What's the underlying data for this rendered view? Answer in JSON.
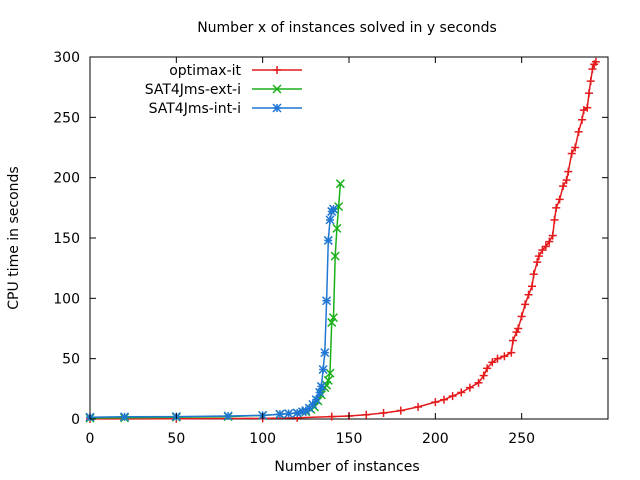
{
  "chart_data": {
    "type": "line",
    "title": "Number x of instances solved in y seconds",
    "xlabel": "Number of instances",
    "ylabel": "CPU time in seconds",
    "xlim": [
      0,
      300
    ],
    "ylim": [
      0,
      300
    ],
    "xticks": [
      0,
      50,
      100,
      150,
      200,
      250
    ],
    "yticks": [
      0,
      50,
      100,
      150,
      200,
      250,
      300
    ],
    "grid": false,
    "legend_position": "top-left",
    "series": [
      {
        "name": "optimax-it",
        "color": "#e41a1c",
        "marker": "plus",
        "points": [
          [
            0,
            0.1
          ],
          [
            50,
            0.2
          ],
          [
            100,
            0.5
          ],
          [
            120,
            1
          ],
          [
            140,
            2
          ],
          [
            150,
            2.5
          ],
          [
            160,
            3.5
          ],
          [
            170,
            5
          ],
          [
            180,
            7
          ],
          [
            190,
            10
          ],
          [
            200,
            14
          ],
          [
            205,
            16
          ],
          [
            210,
            19
          ],
          [
            215,
            22
          ],
          [
            220,
            26
          ],
          [
            225,
            30
          ],
          [
            228,
            36
          ],
          [
            230,
            42
          ],
          [
            233,
            47
          ],
          [
            236,
            50
          ],
          [
            240,
            52
          ],
          [
            244,
            55
          ],
          [
            245,
            65
          ],
          [
            247,
            72
          ],
          [
            248,
            75
          ],
          [
            250,
            85
          ],
          [
            252,
            95
          ],
          [
            254,
            103
          ],
          [
            256,
            110
          ],
          [
            257,
            120
          ],
          [
            259,
            130
          ],
          [
            260,
            135
          ],
          [
            262,
            140
          ],
          [
            264,
            143
          ],
          [
            266,
            147
          ],
          [
            268,
            152
          ],
          [
            269,
            165
          ],
          [
            270,
            175
          ],
          [
            272,
            182
          ],
          [
            274,
            193
          ],
          [
            276,
            198
          ],
          [
            277,
            205
          ],
          [
            279,
            220
          ],
          [
            281,
            225
          ],
          [
            283,
            238
          ],
          [
            285,
            248
          ],
          [
            286,
            256
          ],
          [
            288,
            258
          ],
          [
            289,
            270
          ],
          [
            290,
            280
          ],
          [
            291,
            290
          ],
          [
            292,
            294
          ],
          [
            293,
            296
          ]
        ]
      },
      {
        "name": "SAT4Jms-ext-i",
        "color": "#1ab01a",
        "marker": "cross",
        "points": [
          [
            0,
            0.8
          ],
          [
            20,
            1
          ],
          [
            50,
            1.5
          ],
          [
            80,
            2
          ],
          [
            100,
            3
          ],
          [
            110,
            4
          ],
          [
            120,
            5
          ],
          [
            125,
            6
          ],
          [
            128,
            8
          ],
          [
            130,
            10
          ],
          [
            132,
            15
          ],
          [
            134,
            20
          ],
          [
            136,
            26
          ],
          [
            137,
            28
          ],
          [
            138,
            32
          ],
          [
            139,
            38
          ],
          [
            140,
            80
          ],
          [
            141,
            84
          ],
          [
            142,
            135
          ],
          [
            143,
            158
          ],
          [
            144,
            176
          ],
          [
            145,
            195
          ]
        ]
      },
      {
        "name": "SAT4Jms-int-i",
        "color": "#1f77d4",
        "marker": "star",
        "points": [
          [
            0,
            1.5
          ],
          [
            20,
            1.8
          ],
          [
            50,
            2
          ],
          [
            80,
            2.5
          ],
          [
            100,
            3
          ],
          [
            110,
            4
          ],
          [
            115,
            4.5
          ],
          [
            120,
            5
          ],
          [
            123,
            6
          ],
          [
            125,
            7
          ],
          [
            127,
            9
          ],
          [
            129,
            12
          ],
          [
            131,
            16
          ],
          [
            133,
            22
          ],
          [
            134,
            27
          ],
          [
            135,
            41
          ],
          [
            136,
            55
          ],
          [
            137,
            98
          ],
          [
            138,
            148
          ],
          [
            139,
            165
          ],
          [
            140,
            172
          ],
          [
            141,
            174
          ]
        ]
      }
    ]
  }
}
